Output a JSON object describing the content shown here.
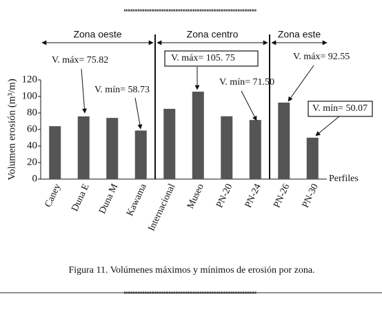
{
  "chart_data": {
    "type": "bar",
    "categories": [
      "Caney",
      "Duna E",
      "Duna M",
      "Kawama",
      "Internacional",
      "Museo",
      "PN-20",
      "PN-24",
      "PN-26",
      "PN-30"
    ],
    "values": [
      64,
      75.82,
      74,
      58.73,
      85,
      105.75,
      76,
      71.5,
      92.55,
      50.07
    ],
    "color": "#555555",
    "ylim": [
      0,
      120
    ],
    "yticks": [
      0,
      20,
      40,
      60,
      80,
      100,
      120
    ],
    "y_label": "Volumen erosión  (m³/m)",
    "x_label": "Perfiles",
    "zones": [
      "Zona oeste",
      "Zona centro",
      "Zona este"
    ],
    "annotations": [
      {
        "text": "V. máx= 75.82",
        "boxed": false
      },
      {
        "text": "V. mín= 58.73",
        "boxed": false
      },
      {
        "text": "V. máx= 105. 75",
        "boxed": true
      },
      {
        "text": "V. mín= 71.50",
        "boxed": false
      },
      {
        "text": "V. máx= 92.55",
        "boxed": false
      },
      {
        "text": "V. mín= 50.07",
        "boxed": true
      }
    ],
    "caption": "Figura 11. Volúmenes máximos y mínimos de erosión por zona."
  }
}
